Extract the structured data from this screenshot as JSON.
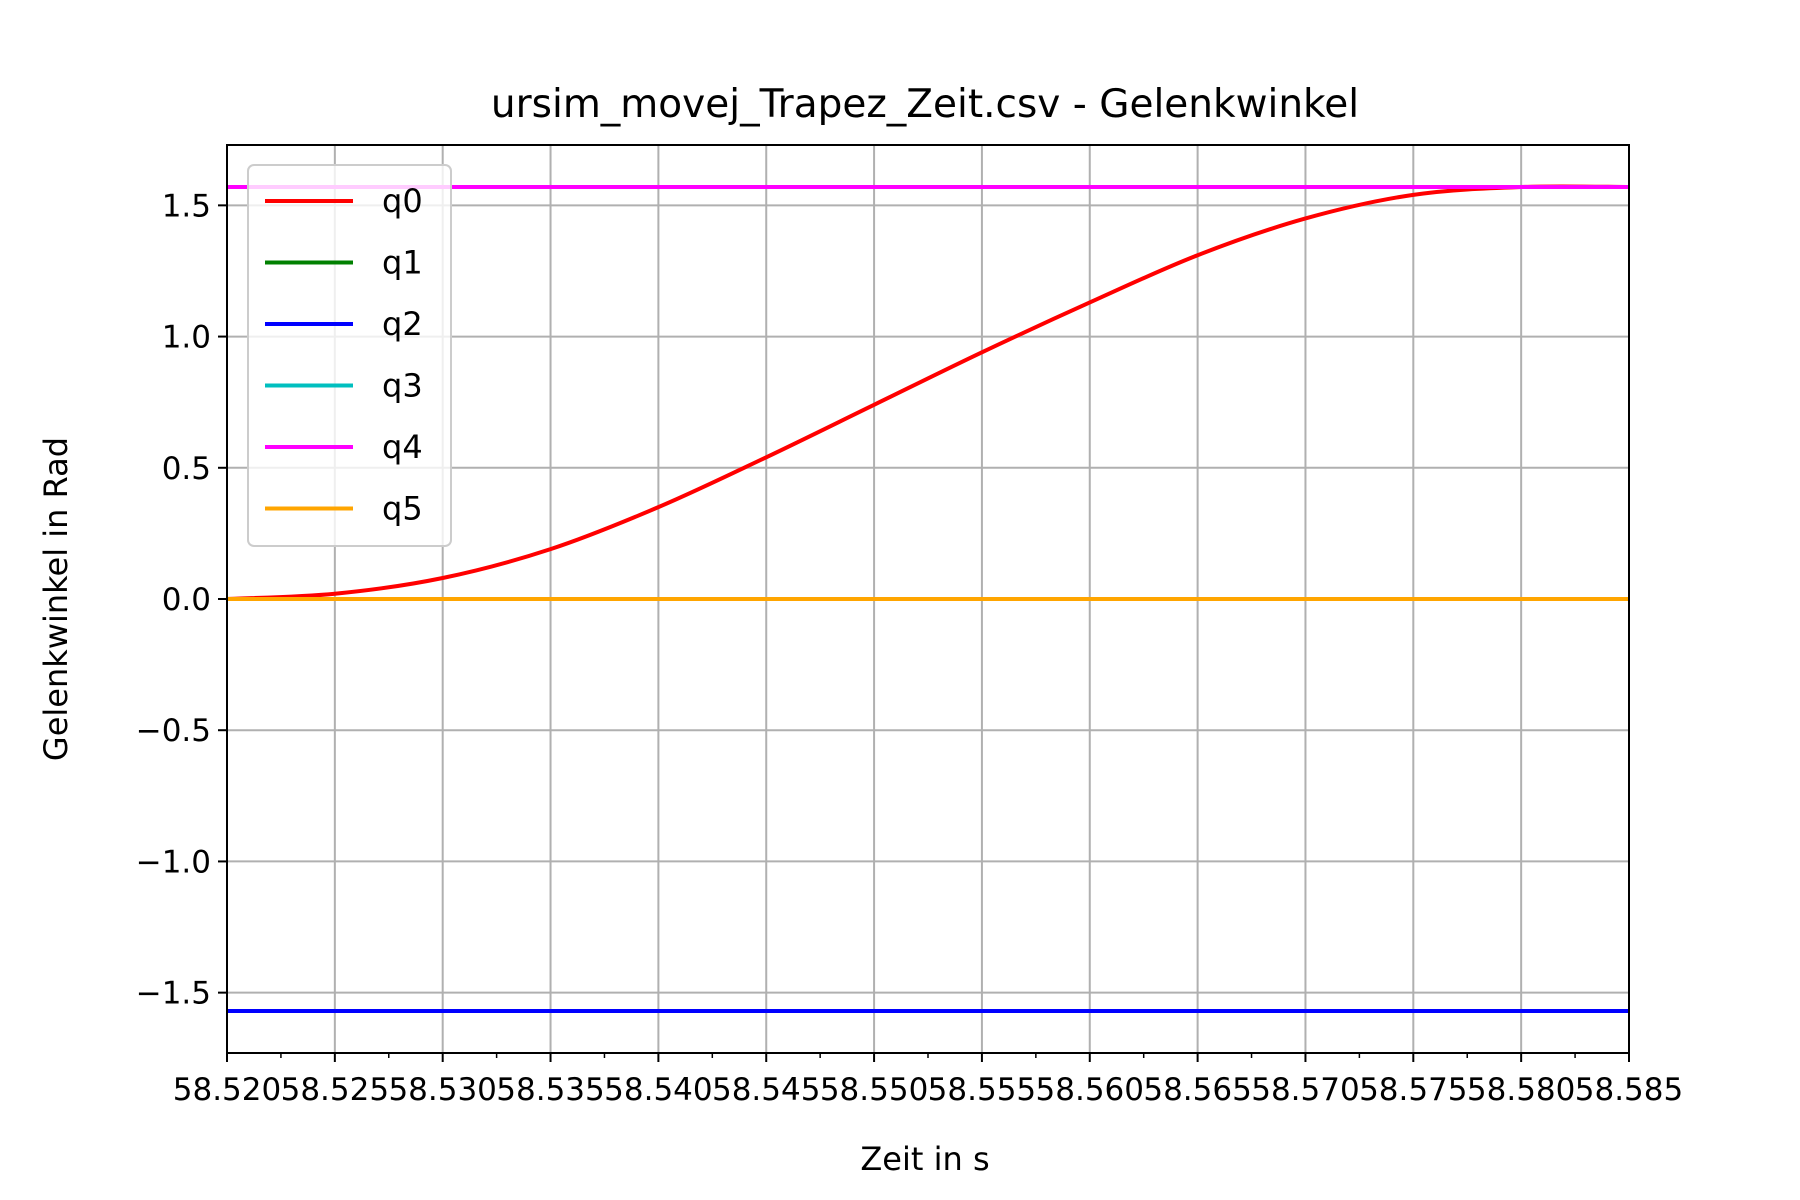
{
  "chart_data": {
    "type": "line",
    "title": "ursim_movej_Trapez_Zeit.csv - Gelenkwinkel",
    "xlabel": "Zeit in s",
    "ylabel": "Gelenkwinkel in Rad",
    "xlim": [
      58.52,
      58.585
    ],
    "ylim": [
      -1.73,
      1.73
    ],
    "grid": true,
    "legend_position": "top-left",
    "x_ticks": [
      58.52,
      58.525,
      58.53,
      58.535,
      58.54,
      58.545,
      58.55,
      58.555,
      58.56,
      58.565,
      58.57,
      58.575,
      58.58,
      58.585
    ],
    "x_tick_labels": [
      "58.520",
      "58.525",
      "58.530",
      "58.535",
      "58.540",
      "58.545",
      "58.550",
      "58.555",
      "58.560",
      "58.565",
      "58.570",
      "58.575",
      "58.580",
      "58.585"
    ],
    "y_ticks": [
      -1.5,
      -1.0,
      -0.5,
      0.0,
      0.5,
      1.0,
      1.5
    ],
    "y_tick_labels": [
      "−1.5",
      "−1.0",
      "−0.5",
      "0.0",
      "0.5",
      "1.0",
      "1.5"
    ],
    "x": [
      58.52,
      58.525,
      58.53,
      58.535,
      58.54,
      58.545,
      58.55,
      58.555,
      58.56,
      58.565,
      58.57,
      58.575,
      58.58,
      58.585
    ],
    "series": [
      {
        "name": "q0",
        "color": "#ff0000",
        "values": [
          0.0,
          0.02,
          0.08,
          0.19,
          0.35,
          0.54,
          0.74,
          0.94,
          1.13,
          1.31,
          1.45,
          1.54,
          1.57,
          1.57
        ]
      },
      {
        "name": "q1",
        "color": "#008000",
        "values": [
          0.0,
          0.0,
          0.0,
          0.0,
          0.0,
          0.0,
          0.0,
          0.0,
          0.0,
          0.0,
          0.0,
          0.0,
          0.0,
          0.0
        ]
      },
      {
        "name": "q2",
        "color": "#0000ff",
        "values": [
          -1.57,
          -1.57,
          -1.57,
          -1.57,
          -1.57,
          -1.57,
          -1.57,
          -1.57,
          -1.57,
          -1.57,
          -1.57,
          -1.57,
          -1.57,
          -1.57
        ]
      },
      {
        "name": "q3",
        "color": "#00bfbf",
        "values": [
          0.0,
          0.0,
          0.0,
          0.0,
          0.0,
          0.0,
          0.0,
          0.0,
          0.0,
          0.0,
          0.0,
          0.0,
          0.0,
          0.0
        ]
      },
      {
        "name": "q4",
        "color": "#ff00ff",
        "values": [
          1.57,
          1.57,
          1.57,
          1.57,
          1.57,
          1.57,
          1.57,
          1.57,
          1.57,
          1.57,
          1.57,
          1.57,
          1.57,
          1.57
        ]
      },
      {
        "name": "q5",
        "color": "#ffa500",
        "values": [
          0.0,
          0.0,
          0.0,
          0.0,
          0.0,
          0.0,
          0.0,
          0.0,
          0.0,
          0.0,
          0.0,
          0.0,
          0.0,
          0.0
        ]
      }
    ]
  }
}
